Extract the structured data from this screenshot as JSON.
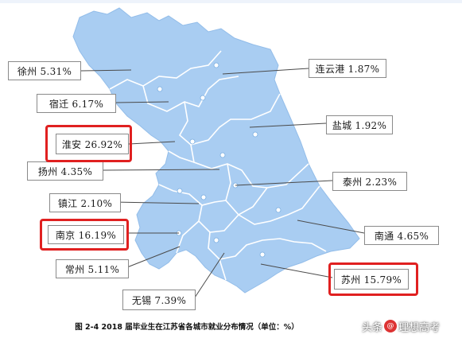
{
  "regions": [
    {
      "id": "xuzhou",
      "text": "徐州 5.31%",
      "highlighted": false
    },
    {
      "id": "lianyungang",
      "text": "连云港 1.87%",
      "highlighted": false
    },
    {
      "id": "suqian",
      "text": "宿迁 6.17%",
      "highlighted": false
    },
    {
      "id": "yancheng",
      "text": "盐城 1.92%",
      "highlighted": false
    },
    {
      "id": "huaian",
      "text": "淮安 26.92%",
      "highlighted": true
    },
    {
      "id": "yangzhou",
      "text": "扬州 4.35%",
      "highlighted": false
    },
    {
      "id": "taizhou",
      "text": "泰州 2.23%",
      "highlighted": false
    },
    {
      "id": "zhenjiang",
      "text": "镇江 2.10%",
      "highlighted": false
    },
    {
      "id": "nanjing",
      "text": "南京 16.19%",
      "highlighted": true
    },
    {
      "id": "nantong",
      "text": "南通 4.65%",
      "highlighted": false
    },
    {
      "id": "changzhou",
      "text": "常州 5.11%",
      "highlighted": false
    },
    {
      "id": "suzhou",
      "text": "苏州 15.79%",
      "highlighted": true
    },
    {
      "id": "wuxi",
      "text": "无锡 7.39%",
      "highlighted": false
    }
  ],
  "caption": "图 2-4 2018 届毕业生在江苏省各城市就业分布情况（单位：%）",
  "watermark": {
    "prefix": "头条",
    "name": "理想高考"
  },
  "colors": {
    "land": "#a9cdf2",
    "border": "#ffffff",
    "highlight": "#e02020",
    "leader": "#4a4a4a"
  }
}
